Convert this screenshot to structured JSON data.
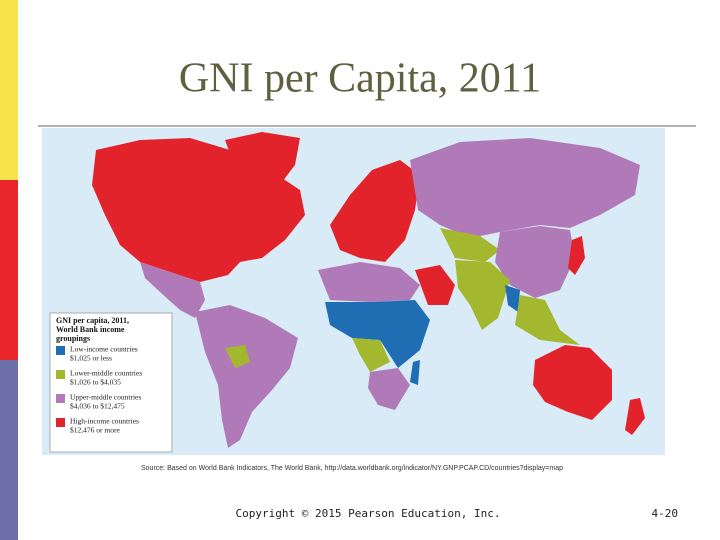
{
  "slide": {
    "title": "GNI per Capita, 2011",
    "map": {
      "legend": {
        "title": [
          "GNI per capita, 2011,",
          "World Bank income",
          "groupings"
        ],
        "items": [
          {
            "label": "Low-income countries",
            "range": "$1,025 or less",
            "color": "#1f6db3"
          },
          {
            "label": "Lower-middle countries",
            "range": "$1,026 to $4,035",
            "color": "#a3b82e"
          },
          {
            "label": "Upper-middle countries",
            "range": "$4,036 to $12,475",
            "color": "#b07ab8"
          },
          {
            "label": "High-income countries",
            "range": "$12,476 or more",
            "color": "#e3232b"
          }
        ]
      },
      "source": "Source: Based on World Bank Indicators, The World Bank, http://data.worldbank.org/indicator/NY.GNP.PCAP.CD/countries?display=map"
    },
    "footer": {
      "copyright": "Copyright © 2015 Pearson Education, Inc.",
      "page": "4-20"
    }
  }
}
